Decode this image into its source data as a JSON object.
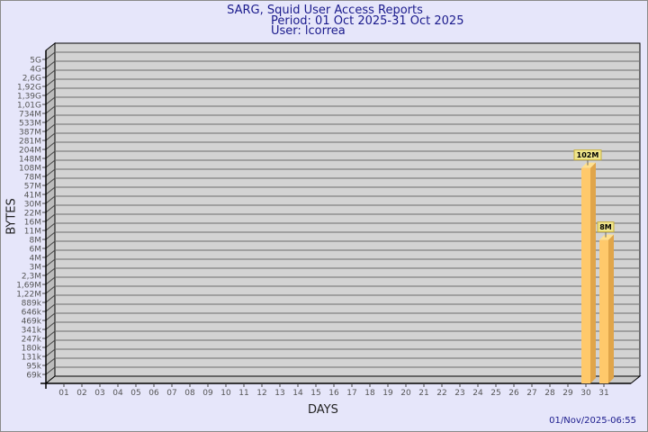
{
  "header": {
    "title": "SARG, Squid User Access Reports",
    "period": "Period: 01 Oct 2025-31 Oct 2025",
    "user": "User: lcorrea"
  },
  "footer": {
    "timestamp": "01/Nov/2025-06:55"
  },
  "colors": {
    "background": "#e6e6fa",
    "bar": "#ffc96b",
    "bar_side": "#e0a54a",
    "wall": "#d3d3d3",
    "title": "#1a1a8c"
  },
  "chart_data": {
    "type": "bar",
    "title": "SARG, Squid User Access Reports",
    "xlabel": "DAYS",
    "ylabel": "BYTES",
    "y_scale": "log",
    "grid": true,
    "y_tick_labels": [
      "5G",
      "4G",
      "2,6G",
      "1,92G",
      "1,39G",
      "1,01G",
      "734M",
      "533M",
      "387M",
      "281M",
      "204M",
      "148M",
      "108M",
      "78M",
      "57M",
      "41M",
      "30M",
      "22M",
      "16M",
      "11M",
      "8M",
      "6M",
      "4M",
      "3M",
      "2,3M",
      "1,69M",
      "1,22M",
      "889k",
      "646k",
      "469k",
      "341k",
      "247k",
      "180k",
      "131k",
      "95k",
      "69k"
    ],
    "categories": [
      "01",
      "02",
      "03",
      "04",
      "05",
      "06",
      "07",
      "08",
      "09",
      "10",
      "11",
      "12",
      "13",
      "14",
      "15",
      "16",
      "17",
      "18",
      "19",
      "20",
      "21",
      "22",
      "23",
      "24",
      "25",
      "26",
      "27",
      "28",
      "29",
      "30",
      "31"
    ],
    "values": [
      0,
      0,
      0,
      0,
      0,
      0,
      0,
      0,
      0,
      0,
      0,
      0,
      0,
      0,
      0,
      0,
      0,
      0,
      0,
      0,
      0,
      0,
      0,
      0,
      0,
      0,
      0,
      0,
      0,
      102000000,
      8000000
    ],
    "data_labels": [
      "",
      "",
      "",
      "",
      "",
      "",
      "",
      "",
      "",
      "",
      "",
      "",
      "",
      "",
      "",
      "",
      "",
      "",
      "",
      "",
      "",
      "",
      "",
      "",
      "",
      "",
      "",
      "",
      "",
      "102M",
      "8M"
    ]
  }
}
